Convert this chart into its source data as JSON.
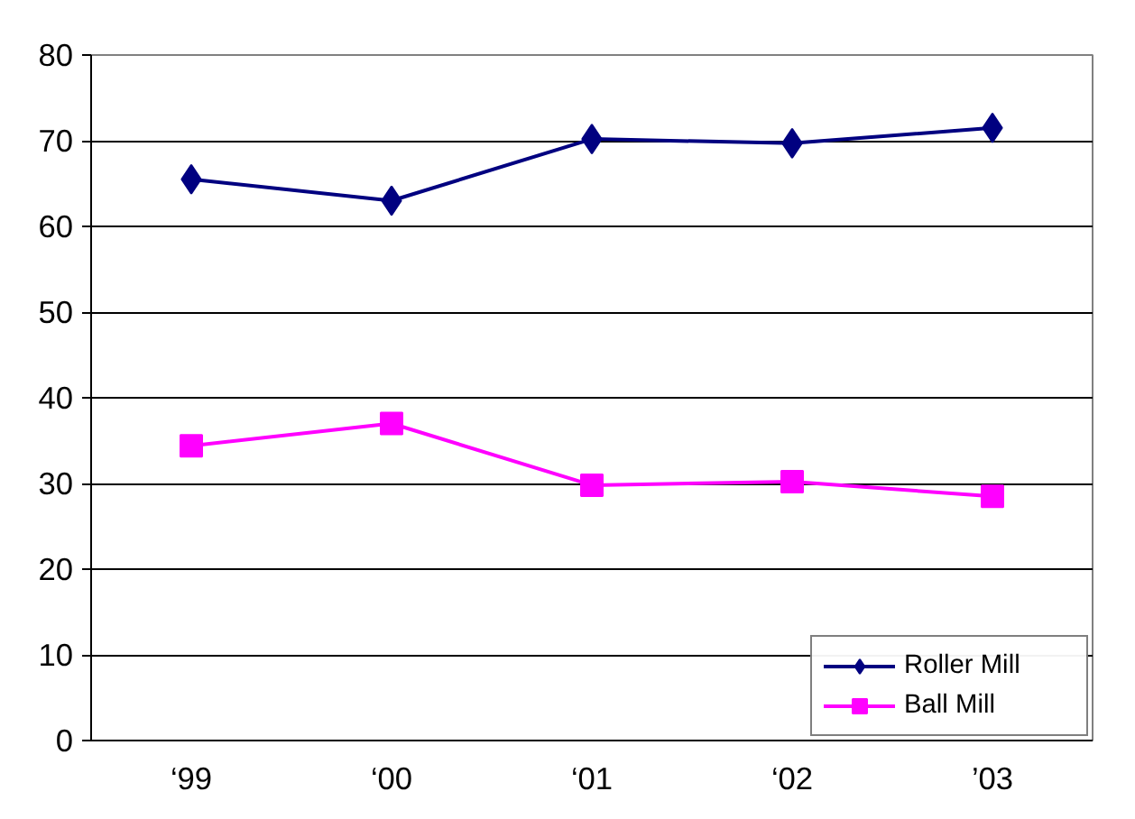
{
  "chart_data": {
    "type": "line",
    "categories": [
      "‘99",
      "‘00",
      "‘01",
      "‘02",
      "’03"
    ],
    "series": [
      {
        "name": "Roller Mill",
        "color": "#000080",
        "marker": "diamond",
        "values": [
          65.5,
          63.0,
          70.2,
          69.7,
          71.5
        ]
      },
      {
        "name": "Ball Mill",
        "color": "#ff00ff",
        "marker": "square",
        "values": [
          34.4,
          37.0,
          29.8,
          30.2,
          28.5
        ]
      }
    ],
    "ylim": [
      0,
      80
    ],
    "yticks": [
      0,
      10,
      20,
      30,
      40,
      50,
      60,
      70,
      80
    ],
    "grid": "y",
    "legend": "bottom right",
    "line_style": "solid"
  }
}
